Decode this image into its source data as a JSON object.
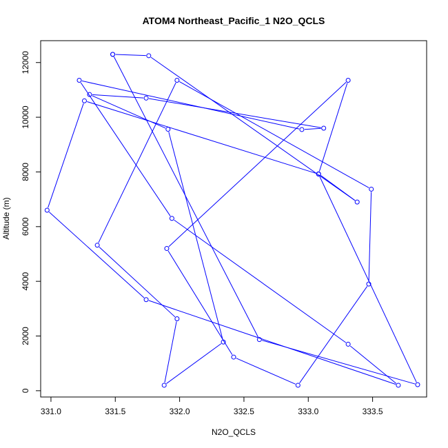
{
  "chart_data": {
    "type": "line",
    "title": "ATOM4 Northeast_Pacific_1 N2O_QCLS",
    "xlabel": "N2O_QCLS",
    "ylabel": "Altitude (m)",
    "xlim": [
      330.92,
      333.92
    ],
    "ylim": [
      -230,
      12800
    ],
    "xticks": [
      331.0,
      331.5,
      332.0,
      332.5,
      333.0,
      333.5
    ],
    "xtick_labels": [
      "331.0",
      "331.5",
      "332.0",
      "332.5",
      "333.0",
      "333.5"
    ],
    "yticks": [
      0,
      2000,
      4000,
      6000,
      8000,
      10000,
      12000
    ],
    "ytick_labels": [
      "0",
      "2000",
      "4000",
      "6000",
      "8000",
      "10000",
      "12000"
    ],
    "grid": false,
    "series_color": "#0000ff",
    "marker": "open-circle",
    "points": [
      {
        "x": 331.48,
        "y": 12300
      },
      {
        "x": 331.76,
        "y": 12250
      },
      {
        "x": 333.38,
        "y": 6900
      },
      {
        "x": 333.08,
        "y": 7930
      },
      {
        "x": 333.31,
        "y": 11350
      },
      {
        "x": 331.9,
        "y": 5200
      },
      {
        "x": 332.42,
        "y": 1230
      },
      {
        "x": 332.92,
        "y": 200
      },
      {
        "x": 333.47,
        "y": 3900
      },
      {
        "x": 333.49,
        "y": 7370
      },
      {
        "x": 331.98,
        "y": 11350
      },
      {
        "x": 331.36,
        "y": 5320
      },
      {
        "x": 331.98,
        "y": 2630
      },
      {
        "x": 331.88,
        "y": 200
      },
      {
        "x": 332.34,
        "y": 1780
      },
      {
        "x": 331.91,
        "y": 9560
      },
      {
        "x": 331.3,
        "y": 10830
      },
      {
        "x": 331.74,
        "y": 10700
      },
      {
        "x": 333.12,
        "y": 9600
      },
      {
        "x": 332.95,
        "y": 9550
      },
      {
        "x": 331.22,
        "y": 11350
      },
      {
        "x": 331.94,
        "y": 6300
      },
      {
        "x": 333.31,
        "y": 1700
      },
      {
        "x": 333.7,
        "y": 200
      },
      {
        "x": 331.74,
        "y": 3330
      },
      {
        "x": 330.97,
        "y": 6600
      },
      {
        "x": 331.26,
        "y": 10600
      },
      {
        "x": 333.08,
        "y": 7920
      },
      {
        "x": 333.85,
        "y": 220
      },
      {
        "x": 332.62,
        "y": 1870
      },
      {
        "x": 331.48,
        "y": 12300
      }
    ]
  }
}
